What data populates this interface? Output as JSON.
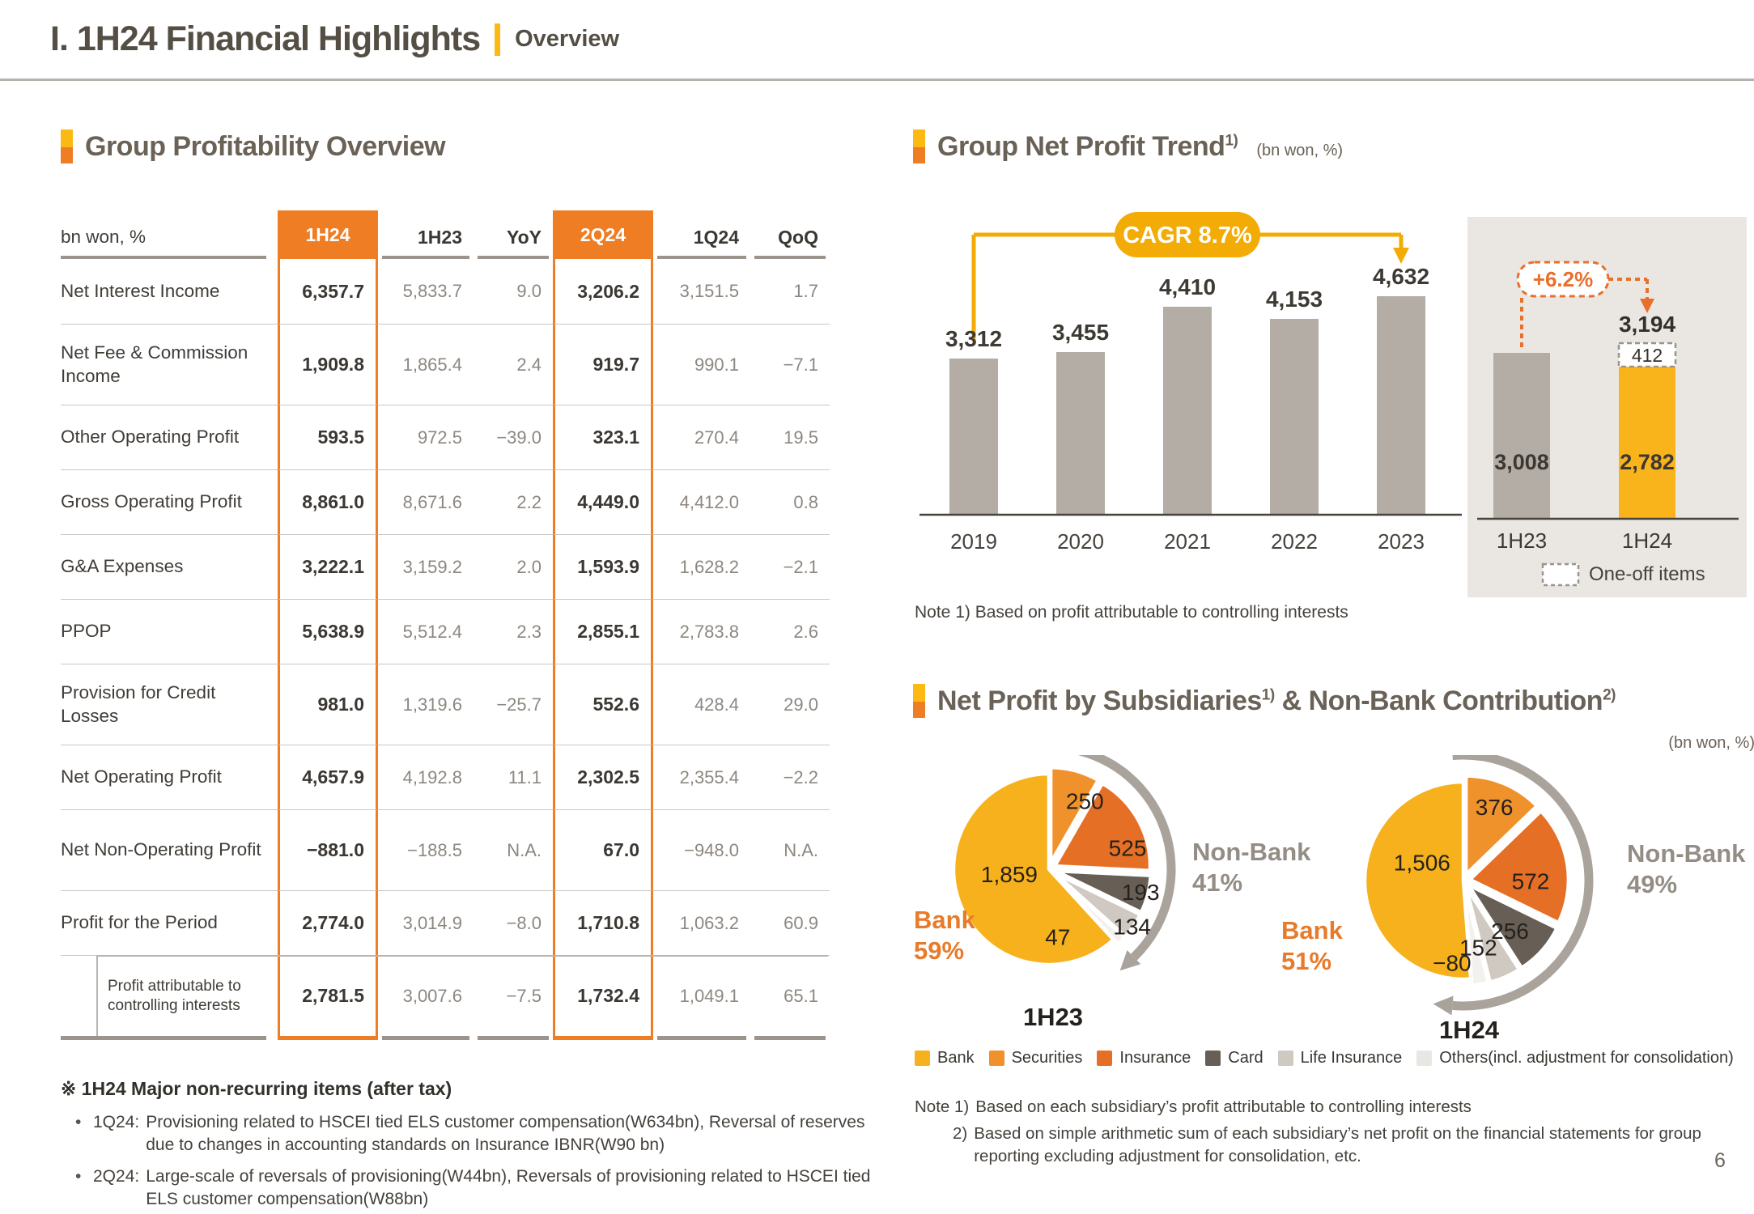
{
  "header": {
    "title": "I. 1H24 Financial Highlights",
    "subtitle": "Overview",
    "page_number": "6"
  },
  "profitability": {
    "heading": "Group Profitability Overview",
    "unit_header": "bn won, %",
    "columns": [
      "1H24",
      "1H23",
      "YoY",
      "2Q24",
      "1Q24",
      "QoQ"
    ],
    "highlight_columns": [
      "1H24",
      "2Q24"
    ],
    "rows": [
      {
        "label": "Net Interest Income",
        "values": [
          "6,357.7",
          "5,833.7",
          "9.0",
          "3,206.2",
          "3,151.5",
          "1.7"
        ]
      },
      {
        "label": "Net Fee & Commission Income",
        "values": [
          "1,909.8",
          "1,865.4",
          "2.4",
          "919.7",
          "990.1",
          "−7.1"
        ]
      },
      {
        "label": "Other Operating Profit",
        "values": [
          "593.5",
          "972.5",
          "−39.0",
          "323.1",
          "270.4",
          "19.5"
        ]
      },
      {
        "label": "Gross Operating Profit",
        "values": [
          "8,861.0",
          "8,671.6",
          "2.2",
          "4,449.0",
          "4,412.0",
          "0.8"
        ]
      },
      {
        "label": "G&A Expenses",
        "values": [
          "3,222.1",
          "3,159.2",
          "2.0",
          "1,593.9",
          "1,628.2",
          "−2.1"
        ]
      },
      {
        "label": "PPOP",
        "values": [
          "5,638.9",
          "5,512.4",
          "2.3",
          "2,855.1",
          "2,783.8",
          "2.6"
        ]
      },
      {
        "label": "Provision for Credit Losses",
        "values": [
          "981.0",
          "1,319.6",
          "−25.7",
          "552.6",
          "428.4",
          "29.0"
        ]
      },
      {
        "label": "Net Operating Profit",
        "values": [
          "4,657.9",
          "4,192.8",
          "11.1",
          "2,302.5",
          "2,355.4",
          "−2.2"
        ]
      },
      {
        "label": "Net Non-Operating Profit",
        "values": [
          "−881.0",
          "−188.5",
          "N.A.",
          "67.0",
          "−948.0",
          "N.A."
        ]
      },
      {
        "label": "Profit for the Period",
        "values": [
          "2,774.0",
          "3,014.9",
          "−8.0",
          "1,710.8",
          "1,063.2",
          "60.9"
        ]
      },
      {
        "label": "Profit attributable to controlling interests",
        "indent": true,
        "values": [
          "2,781.5",
          "3,007.6",
          "−7.5",
          "1,732.4",
          "1,049.1",
          "65.1"
        ]
      }
    ],
    "footnote": {
      "heading": "※ 1H24 Major non-recurring items (after tax)",
      "items": [
        {
          "prefix": "1Q24:",
          "text": "Provisioning related to HSCEI tied ELS customer compensation(W634bn), Reversal of reserves due to changes in accounting standards on Insurance IBNR(W90 bn)"
        },
        {
          "prefix": "2Q24:",
          "text": "Large-scale of reversals of provisioning(W44bn), Reversals of provisioning related to HSCEI tied ELS customer compensation(W88bn)"
        }
      ]
    }
  },
  "net_profit_trend": {
    "heading": "Group Net Profit Trend",
    "heading_sup": "1)",
    "unit": "(bn won, %)",
    "note": "Note 1) Based on profit attributable to controlling interests"
  },
  "subsidiaries": {
    "heading_main": "Net Profit by Subsidiaries",
    "heading_sup1": "1)",
    "heading_tail": " & Non-Bank Contribution",
    "heading_sup2": "2)",
    "unit": "(bn won, %)",
    "legend": [
      {
        "label": "Bank",
        "color": "#f7b11c"
      },
      {
        "label": "Securities",
        "color": "#f0922b"
      },
      {
        "label": "Insurance",
        "color": "#e56f24"
      },
      {
        "label": "Card",
        "color": "#675f55"
      },
      {
        "label": "Life Insurance",
        "color": "#cfc9c1"
      },
      {
        "label": "Others(incl. adjustment for consolidation)",
        "color": "#e9e7e3"
      }
    ],
    "notes": [
      {
        "prefix": "Note 1)",
        "text": "Based on each subsidiary’s profit attributable to controlling interests"
      },
      {
        "prefix": "2)",
        "text": "Based on simple arithmetic sum of each subsidiary’s net profit on the financial statements for group reporting excluding adjustment for consolidation, etc."
      }
    ]
  },
  "chart_data": [
    {
      "id": "net_profit_trend_bars",
      "type": "bar",
      "title": "Group Net Profit Trend",
      "unit": "bn won",
      "categories": [
        "2019",
        "2020",
        "2021",
        "2022",
        "2023"
      ],
      "values": [
        3312,
        3455,
        4410,
        4153,
        4632
      ],
      "value_labels": [
        "3,312",
        "3,455",
        "4,410",
        "4,153",
        "4,632"
      ],
      "annotation": "CAGR 8.7%",
      "bar_color": "#b3ada5",
      "ylim": [
        0,
        5000
      ],
      "grid": false,
      "note": "Note 1) Based on profit attributable to controlling interests"
    },
    {
      "id": "half_year_comparison",
      "type": "bar",
      "subtype": "stacked",
      "categories": [
        "1H23",
        "1H24"
      ],
      "series": [
        {
          "name": "Net profit",
          "values": [
            3008,
            2782
          ],
          "labels": [
            "3,008",
            "2,782"
          ],
          "colors": [
            "#b3ada5",
            "#f9b41c"
          ]
        },
        {
          "name": "One-off items",
          "values": [
            0,
            412
          ],
          "labels": [
            "",
            "412"
          ],
          "style": "dashed-outline"
        }
      ],
      "total_label": "3,194",
      "delta_label": "+6.2%",
      "legend": "One-off items"
    },
    {
      "id": "subsidiaries_1h23",
      "type": "pie",
      "title": "1H23",
      "total": 3008,
      "bank_share": {
        "title": "Bank",
        "pct": "59%"
      },
      "nonbank_share": {
        "title": "Non-Bank",
        "pct": "41%"
      },
      "segments": [
        {
          "label": "Bank",
          "value": 1859,
          "display": "1,859",
          "color": "#f7b11c"
        },
        {
          "label": "Securities",
          "value": 250,
          "display": "250",
          "color": "#f0922b"
        },
        {
          "label": "Insurance",
          "value": 525,
          "display": "525",
          "color": "#e56f24"
        },
        {
          "label": "Card",
          "value": 193,
          "display": "193",
          "color": "#675f55"
        },
        {
          "label": "Life Insurance",
          "value": 134,
          "display": "134",
          "color": "#cfc9c1"
        },
        {
          "label": "Others",
          "value": 47,
          "display": "47",
          "color": "#f3f1ee"
        }
      ]
    },
    {
      "id": "subsidiaries_1h24",
      "type": "pie",
      "title": "1H24",
      "total": 2782,
      "bank_share": {
        "title": "Bank",
        "pct": "51%"
      },
      "nonbank_share": {
        "title": "Non-Bank",
        "pct": "49%"
      },
      "segments": [
        {
          "label": "Bank",
          "value": 1506,
          "display": "1,506",
          "color": "#f7b11c"
        },
        {
          "label": "Securities",
          "value": 376,
          "display": "376",
          "color": "#f0922b"
        },
        {
          "label": "Insurance",
          "value": 572,
          "display": "572",
          "color": "#e56f24"
        },
        {
          "label": "Card",
          "value": 256,
          "display": "256",
          "color": "#675f55"
        },
        {
          "label": "Life Insurance",
          "value": 152,
          "display": "152",
          "color": "#cfc9c1"
        },
        {
          "label": "Others",
          "value": -80,
          "display": "−80",
          "color": "#f3f1ee"
        }
      ]
    }
  ],
  "colors": {
    "accent_orange": "#ee7d23",
    "accent_yellow": "#f3ab05",
    "bar_gray": "#b3ada5",
    "bar_yellow": "#f9b41c",
    "panel_bg": "#eae7e2",
    "delta_orange": "#e8702d",
    "arc_gray": "#a9a39b",
    "bank_label_orange": "#e87b2a",
    "nonbank_label_gray": "#948d85"
  }
}
